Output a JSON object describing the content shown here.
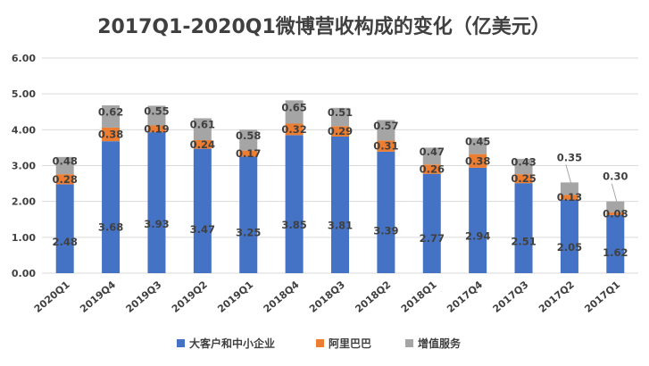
{
  "chart_data": {
    "type": "bar",
    "stacked": true,
    "title": "2017Q1-2020Q1微博营收构成的变化（亿美元）",
    "xlabel": "",
    "ylabel": "",
    "ylim": [
      0,
      6
    ],
    "yticks": [
      "0.00",
      "1.00",
      "2.00",
      "3.00",
      "4.00",
      "5.00",
      "6.00"
    ],
    "grid": true,
    "legend_position": "bottom",
    "categories": [
      "2020Q1",
      "2019Q4",
      "2019Q3",
      "2019Q2",
      "2019Q1",
      "2018Q4",
      "2018Q3",
      "2018Q2",
      "2018Q1",
      "2017Q4",
      "2017Q3",
      "2017Q2",
      "2017Q1"
    ],
    "series": [
      {
        "name": "大客户和中小企业",
        "color": "#4472C4",
        "values": [
          2.48,
          3.68,
          3.93,
          3.47,
          3.25,
          3.85,
          3.81,
          3.39,
          2.77,
          2.94,
          2.51,
          2.05,
          1.62
        ],
        "labels": [
          "2.48",
          "3.68",
          "3.93",
          "3.47",
          "3.25",
          "3.85",
          "3.81",
          "3.39",
          "2.77",
          "2.94",
          "2.51",
          "2.05",
          "1.62"
        ]
      },
      {
        "name": "阿里巴巴",
        "color": "#ED7D31",
        "values": [
          0.28,
          0.38,
          0.19,
          0.24,
          0.17,
          0.32,
          0.29,
          0.31,
          0.26,
          0.38,
          0.25,
          0.13,
          0.08
        ],
        "labels": [
          "0.28",
          "0.38",
          "0.19",
          "0.24",
          "0.17",
          "0.32",
          "0.29",
          "0.31",
          "0.26",
          "0.38",
          "0.25",
          "0.13",
          "0.08"
        ]
      },
      {
        "name": "增值服务",
        "color": "#A5A5A5",
        "values": [
          0.48,
          0.62,
          0.55,
          0.61,
          0.58,
          0.65,
          0.51,
          0.57,
          0.47,
          0.45,
          0.43,
          0.35,
          0.3
        ],
        "labels": [
          "0.48",
          "0.62",
          "0.55",
          "0.61",
          "0.58",
          "0.65",
          "0.51",
          "0.57",
          "0.47",
          "0.45",
          "0.43",
          "0.35",
          "0.30"
        ]
      }
    ]
  }
}
